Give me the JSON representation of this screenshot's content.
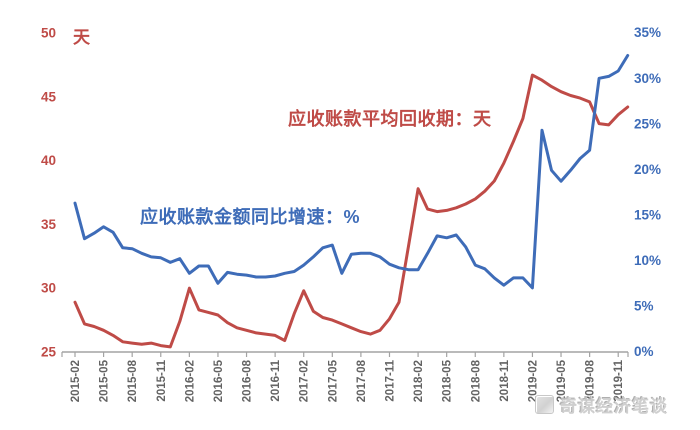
{
  "watermark": {
    "text": "奇谋经济笔谈"
  },
  "chart_data": {
    "type": "line",
    "legend_position": "inline-annotations",
    "grid": false,
    "left_axis": {
      "unit_label": "天",
      "min": 25,
      "max": 50,
      "step": 5,
      "tick_labels": [
        "50",
        "45",
        "40",
        "35",
        "30",
        "25"
      ],
      "color": "#bf4b47"
    },
    "right_axis": {
      "min": 0,
      "max": 35,
      "step": 5,
      "tick_labels": [
        "35%",
        "30%",
        "25%",
        "20%",
        "15%",
        "10%",
        "5%",
        "0%"
      ],
      "color": "#3e6cb8"
    },
    "x_axis": {
      "tick_labels": [
        "2015-02",
        "2015-05",
        "2015-08",
        "2015-11",
        "2016-02",
        "2016-05",
        "2016-08",
        "2016-11",
        "2017-02",
        "2017-05",
        "2017-08",
        "2017-11",
        "2018-02",
        "2018-05",
        "2018-08",
        "2018-11",
        "2019-02",
        "2019-05",
        "2019-08",
        "2019-11"
      ],
      "label_rotation_deg": -90,
      "color": "#636363"
    },
    "x_months": [
      "2015-02",
      "2015-03",
      "2015-04",
      "2015-05",
      "2015-06",
      "2015-07",
      "2015-08",
      "2015-09",
      "2015-10",
      "2015-11",
      "2015-12",
      "2016-01",
      "2016-02",
      "2016-03",
      "2016-04",
      "2016-05",
      "2016-06",
      "2016-07",
      "2016-08",
      "2016-09",
      "2016-10",
      "2016-11",
      "2016-12",
      "2017-01",
      "2017-02",
      "2017-03",
      "2017-04",
      "2017-05",
      "2017-06",
      "2017-07",
      "2017-08",
      "2017-09",
      "2017-10",
      "2017-11",
      "2017-12",
      "2018-01",
      "2018-02",
      "2018-03",
      "2018-04",
      "2018-05",
      "2018-06",
      "2018-07",
      "2018-08",
      "2018-09",
      "2018-10",
      "2018-11",
      "2018-12",
      "2019-01",
      "2019-02",
      "2019-03",
      "2019-04",
      "2019-05",
      "2019-06",
      "2019-07",
      "2019-08",
      "2019-09",
      "2019-10",
      "2019-11",
      "2019-12"
    ],
    "series": [
      {
        "name": "应收账款平均回收期：天",
        "axis": "left",
        "unit": "天",
        "color": "#bf4b47",
        "values": [
          28.9,
          27.2,
          27.0,
          26.7,
          26.3,
          25.8,
          25.7,
          25.6,
          25.7,
          25.5,
          25.4,
          27.4,
          30.0,
          28.3,
          28.1,
          27.9,
          27.3,
          26.9,
          26.7,
          26.5,
          26.4,
          26.3,
          25.9,
          28.0,
          29.8,
          28.2,
          27.7,
          27.5,
          27.2,
          26.9,
          26.6,
          26.4,
          26.7,
          27.6,
          28.9,
          33.3,
          37.8,
          36.2,
          36.0,
          36.1,
          36.3,
          36.6,
          37.0,
          37.6,
          38.4,
          39.8,
          41.5,
          43.3,
          46.7,
          46.3,
          45.8,
          45.4,
          45.1,
          44.9,
          44.6,
          42.9,
          42.8,
          43.6,
          44.2
        ]
      },
      {
        "name": "应收账款金额同比增速：%",
        "axis": "right",
        "unit": "%",
        "color": "#3e6cb8",
        "values": [
          16.3,
          12.4,
          13.0,
          13.7,
          13.1,
          11.4,
          11.3,
          10.8,
          10.4,
          10.3,
          9.8,
          10.2,
          8.6,
          9.4,
          9.4,
          7.5,
          8.7,
          8.5,
          8.4,
          8.2,
          8.2,
          8.3,
          8.6,
          8.8,
          9.5,
          10.4,
          11.4,
          11.7,
          8.6,
          10.7,
          10.8,
          10.8,
          10.4,
          9.6,
          9.2,
          9.0,
          9.0,
          10.8,
          12.7,
          12.5,
          12.8,
          11.5,
          9.5,
          9.1,
          8.1,
          7.3,
          8.1,
          8.1,
          7.0,
          24.3,
          19.9,
          18.7,
          19.9,
          21.2,
          22.1,
          30.0,
          30.2,
          30.8,
          32.5
        ]
      }
    ]
  }
}
